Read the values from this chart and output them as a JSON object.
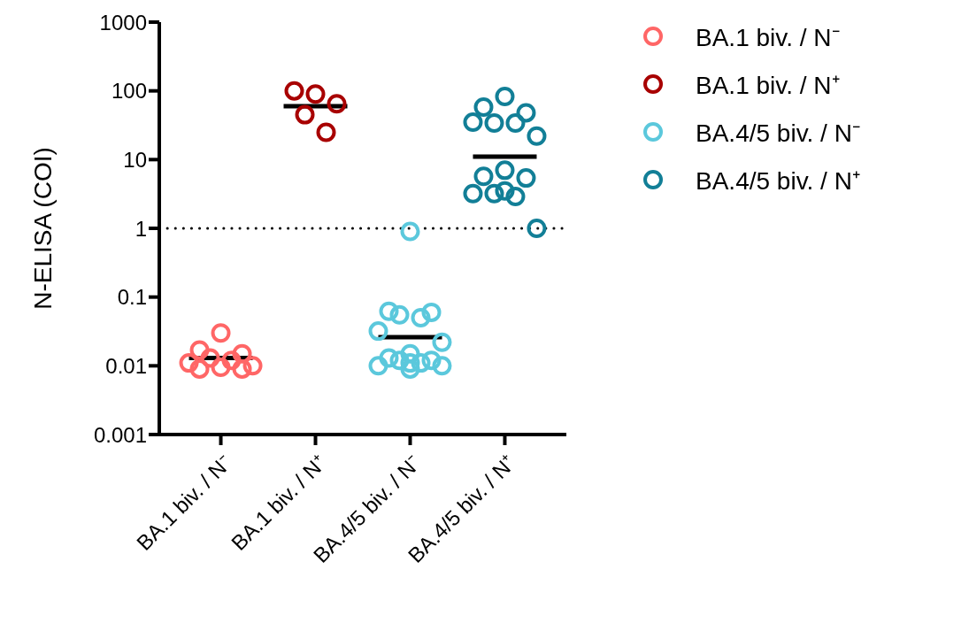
{
  "chart_data": {
    "type": "scatter",
    "ylabel": "N-ELISA (COI)",
    "log": "y",
    "ylim": [
      0.001,
      1000
    ],
    "yticks": [
      0.001,
      0.01,
      0.1,
      1,
      10,
      100,
      1000
    ],
    "legend": "top right",
    "marker": "circle",
    "categories": [
      "BA.1 biv. / N⁻",
      "BA.1 biv. / N⁺",
      "BA.4/5 biv. / N⁻",
      "BA.4/5 biv. / N⁺"
    ],
    "ref_lines": [
      {
        "axis": "y",
        "value": 1,
        "color": "#000000",
        "line_style": "dotted"
      }
    ],
    "series": [
      {
        "name": "BA.1 biv. / N⁻",
        "color": "#ff6666",
        "x": [
          "BA.1 biv. / N⁻",
          "BA.1 biv. / N⁻",
          "BA.1 biv. / N⁻",
          "BA.1 biv. / N⁻",
          "BA.1 biv. / N⁻",
          "BA.1 biv. / N⁻",
          "BA.1 biv. / N⁻",
          "BA.1 biv. / N⁻",
          "BA.1 biv. / N⁻",
          "BA.1 biv. / N⁻"
        ],
        "values": [
          0.03,
          0.017,
          0.015,
          0.013,
          0.012,
          0.011,
          0.01,
          0.0095,
          0.009,
          0.009
        ]
      },
      {
        "name": "BA.1 biv. / N⁺",
        "color": "#a80000",
        "x": [
          "BA.1 biv. / N⁺",
          "BA.1 biv. / N⁺",
          "BA.1 biv. / N⁺",
          "BA.1 biv. / N⁺",
          "BA.1 biv. / N⁺"
        ],
        "values": [
          90,
          100,
          65,
          45,
          25
        ]
      },
      {
        "name": "BA.4/5 biv. / N⁻",
        "color": "#5bc8dc",
        "x": [
          "BA.4/5 biv. / N⁻",
          "BA.4/5 biv. / N⁻",
          "BA.4/5 biv. / N⁻",
          "BA.4/5 biv. / N⁻",
          "BA.4/5 biv. / N⁻",
          "BA.4/5 biv. / N⁻",
          "BA.4/5 biv. / N⁻",
          "BA.4/5 biv. / N⁻",
          "BA.4/5 biv. / N⁻",
          "BA.4/5 biv. / N⁻",
          "BA.4/5 biv. / N⁻",
          "BA.4/5 biv. / N⁻",
          "BA.4/5 biv. / N⁻",
          "BA.4/5 biv. / N⁻",
          "BA.4/5 biv. / N⁻",
          "BA.4/5 biv. / N⁻"
        ],
        "values": [
          0.9,
          0.062,
          0.06,
          0.055,
          0.05,
          0.032,
          0.022,
          0.015,
          0.013,
          0.012,
          0.012,
          0.011,
          0.011,
          0.01,
          0.01,
          0.009
        ]
      },
      {
        "name": "BA.4/5 biv. / N⁺",
        "color": "#127f97",
        "x": [
          "BA.4/5 biv. / N⁺",
          "BA.4/5 biv. / N⁺",
          "BA.4/5 biv. / N⁺",
          "BA.4/5 biv. / N⁺",
          "BA.4/5 biv. / N⁺",
          "BA.4/5 biv. / N⁺",
          "BA.4/5 biv. / N⁺",
          "BA.4/5 biv. / N⁺",
          "BA.4/5 biv. / N⁺",
          "BA.4/5 biv. / N⁺",
          "BA.4/5 biv. / N⁺",
          "BA.4/5 biv. / N⁺",
          "BA.4/5 biv. / N⁺",
          "BA.4/5 biv. / N⁺",
          "BA.4/5 biv. / N⁺"
        ],
        "values": [
          83,
          58,
          48,
          34,
          34,
          35,
          22,
          7,
          5.7,
          5.4,
          3.2,
          2.9,
          3.5,
          3.2,
          1
        ]
      },
      {
        "type": "box",
        "color": "#000000",
        "x": [
          "BA.1 biv. / N⁻",
          "BA.1 biv. / N⁺",
          "BA.4/5 biv. / N⁻",
          "BA.4/5 biv. / N⁺"
        ],
        "boxes": [
          {
            "low": 0.013,
            "q1": 0.013,
            "median": 0.013,
            "q3": 0.013,
            "high": 0.013
          },
          {
            "low": 60,
            "q1": 60,
            "median": 60,
            "q3": 60,
            "high": 60
          },
          {
            "low": 0.026,
            "q1": 0.026,
            "median": 0.026,
            "q3": 0.026,
            "high": 0.026
          },
          {
            "low": 11,
            "q1": 11,
            "median": 11,
            "q3": 11,
            "high": 11
          }
        ]
      }
    ]
  }
}
